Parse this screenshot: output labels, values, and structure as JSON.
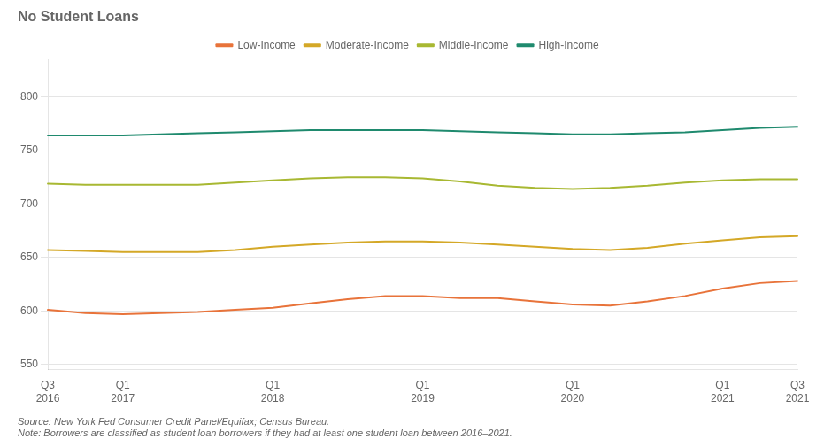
{
  "chart_data": {
    "type": "line",
    "title": "No Student Loans",
    "categories": [
      "Q3\n2016",
      null,
      "Q1\n2017",
      null,
      null,
      null,
      "Q1\n2018",
      null,
      null,
      null,
      "Q1\n2019",
      null,
      null,
      null,
      "Q1\n2020",
      null,
      null,
      null,
      "Q1\n2021",
      null,
      "Q3\n2021"
    ],
    "series": [
      {
        "name": "Low-Income",
        "color": "#e8733a",
        "values": [
          601,
          598,
          597,
          598,
          599,
          601,
          603,
          607,
          611,
          614,
          614,
          612,
          612,
          609,
          606,
          605,
          609,
          614,
          621,
          626,
          628
        ]
      },
      {
        "name": "Moderate-Income",
        "color": "#d4a827",
        "values": [
          657,
          656,
          655,
          655,
          655,
          657,
          660,
          662,
          664,
          665,
          665,
          664,
          662,
          660,
          658,
          657,
          659,
          663,
          666,
          669,
          670
        ]
      },
      {
        "name": "Middle-Income",
        "color": "#a8b832",
        "values": [
          719,
          718,
          718,
          718,
          718,
          720,
          722,
          724,
          725,
          725,
          724,
          721,
          717,
          715,
          714,
          715,
          717,
          720,
          722,
          723,
          723
        ]
      },
      {
        "name": "High-Income",
        "color": "#1f8a6e",
        "values": [
          764,
          764,
          764,
          765,
          766,
          767,
          768,
          769,
          769,
          769,
          769,
          768,
          767,
          766,
          765,
          765,
          766,
          767,
          769,
          771,
          772
        ]
      }
    ],
    "ylim": [
      545,
      835
    ],
    "yticks": [
      550,
      600,
      650,
      700,
      750,
      800
    ],
    "grid": true,
    "legend": "top",
    "annotations": [
      "Source: New York Fed Consumer Credit Panel/Equifax; Census Bureau.",
      "Note: Borrowers are classified as student loan borrowers if they had at least one student loan between 2016–2021."
    ]
  }
}
